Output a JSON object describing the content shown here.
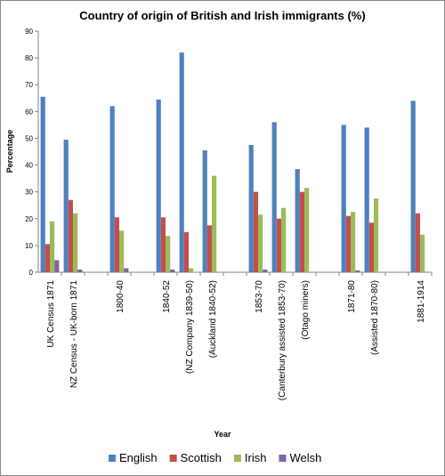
{
  "chart_data": {
    "type": "bar",
    "title": "Country of origin of British and Irish immigrants (%)",
    "x_label": "Year",
    "y_label": "Percentage",
    "categories": [
      "UK Census 1871",
      "NZ Census - UK-born 1871",
      null,
      "1800-40",
      null,
      "1840-52",
      "(NZ Company 1839-50)",
      "(Auckland 1840-52)",
      null,
      "1853-70",
      "(Canterbury assisted 1853-70)",
      "(Otago miners)",
      null,
      "1871-80",
      "(Assisted 1870-80)",
      null,
      "1881-1914"
    ],
    "series": [
      {
        "name": "English",
        "color": "#4f81bd",
        "values": [
          65.5,
          49.5,
          null,
          62,
          null,
          64.5,
          82,
          45.5,
          null,
          47.5,
          56,
          38.5,
          null,
          55,
          54,
          null,
          64
        ]
      },
      {
        "name": "Scottish",
        "color": "#c0504d",
        "values": [
          10.5,
          27,
          null,
          20.5,
          null,
          20.5,
          15,
          17.5,
          null,
          30,
          20,
          30,
          null,
          21,
          18.5,
          null,
          22
        ]
      },
      {
        "name": "Irish",
        "color": "#9bbb59",
        "values": [
          19,
          22,
          null,
          15.5,
          null,
          13.5,
          1.5,
          36,
          null,
          21.5,
          24,
          31.5,
          null,
          22.5,
          27.5,
          null,
          14
        ]
      },
      {
        "name": "Welsh",
        "color": "#8064a2",
        "values": [
          4.5,
          1,
          null,
          1.5,
          null,
          1,
          null,
          null,
          null,
          1,
          null,
          null,
          null,
          0.7,
          null,
          null,
          null
        ]
      }
    ],
    "ylim": [
      0,
      90
    ],
    "yticks": [
      0,
      10,
      20,
      30,
      40,
      50,
      60,
      70,
      80,
      90
    ],
    "legend": "bottom"
  }
}
